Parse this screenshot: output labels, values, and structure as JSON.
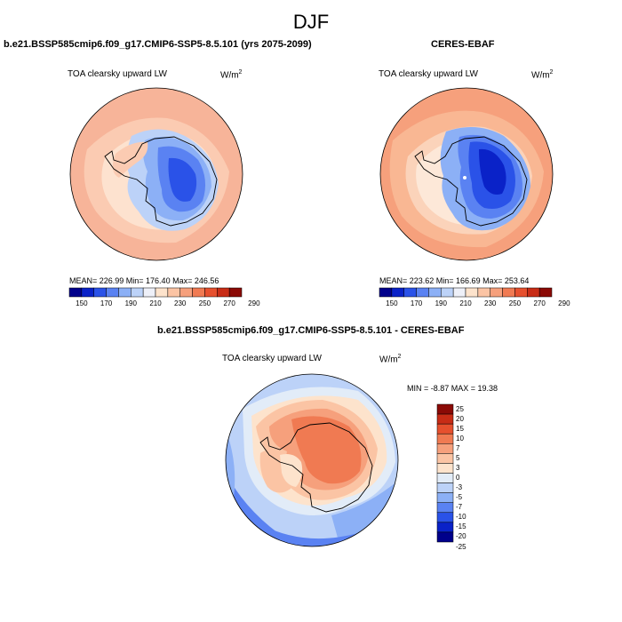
{
  "figure": {
    "season": "DJF",
    "units_base": "W/m",
    "units_exp": "2"
  },
  "panels": [
    {
      "title": "b.e21.BSSP585cmip6.f09_g17.CMIP6-SSP5-8.5.101 (yrs 2075-2099)",
      "subtitle": "TOA clearsky upward LW",
      "stats": "MEAN= 226.99  Min= 176.40  Max= 246.56"
    },
    {
      "title": "CERES-EBAF",
      "subtitle": "TOA clearsky upward LW",
      "stats": "MEAN= 223.62  Min= 166.69  Max= 253.64"
    },
    {
      "title": "b.e21.BSSP585cmip6.f09_g17.CMIP6-SSP5-8.5.101 - CERES-EBAF",
      "subtitle": "TOA clearsky upward LW",
      "stats": "MIN =  -8.87 MAX =  19.38"
    }
  ],
  "colorbar_abs": {
    "colors": [
      "#00008b",
      "#0a22c8",
      "#2a52e8",
      "#5a82f2",
      "#8cb0f6",
      "#bcd2f8",
      "#eef0f8",
      "#fde3cc",
      "#fbc4a4",
      "#f6a07c",
      "#f07a52",
      "#e6502e",
      "#c82c16",
      "#8b0a06"
    ],
    "labels": [
      "150",
      "170",
      "190",
      "210",
      "230",
      "250",
      "270",
      "290"
    ]
  },
  "colorbar_diff": {
    "colors": [
      "#00008b",
      "#0a22c8",
      "#2a52e8",
      "#5a82f2",
      "#8cb0f6",
      "#bcd2f8",
      "#e2ecf8",
      "#fde3cc",
      "#fbc4a4",
      "#f6a07c",
      "#f07a52",
      "#e6502e",
      "#c82c16",
      "#8b0a06"
    ],
    "labels": [
      "25",
      "20",
      "15",
      "10",
      "7",
      "5",
      "3",
      "0",
      "-3",
      "-5",
      "-7",
      "-10",
      "-15",
      "-20",
      "-25"
    ]
  }
}
